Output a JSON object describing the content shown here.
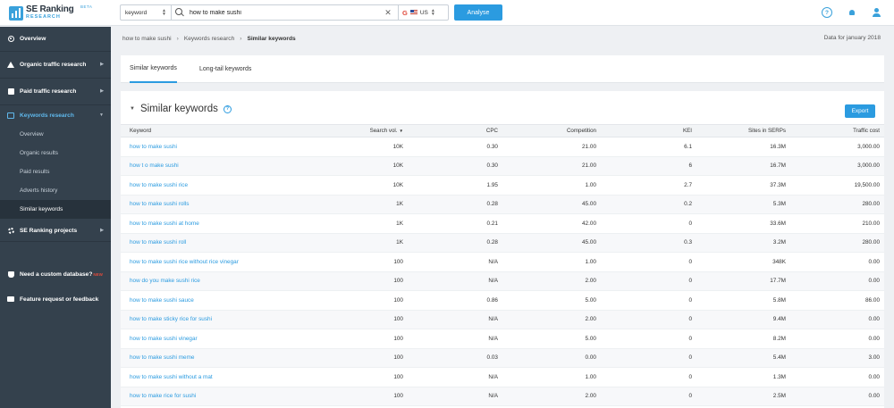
{
  "topbar": {
    "logo_line1": "SE Ranking",
    "logo_line2": "RESEARCH",
    "logo_beta": "BETA",
    "search_type": "keyword",
    "search_value": "how to make sushi",
    "engine_letter": "G",
    "country": "US",
    "analyse_label": "Analyse",
    "help_label": "?"
  },
  "sidebar": {
    "overview": "Overview",
    "organic": "Organic traffic research",
    "paid": "Paid traffic research",
    "keywords": "Keywords research",
    "sub": [
      "Overview",
      "Organic results",
      "Paid results",
      "Adverts history",
      "Similar keywords"
    ],
    "projects": "SE Ranking projects",
    "custom_db": "Need a custom database?",
    "new_tag": "NEW",
    "feature": "Feature request or feedback"
  },
  "breadcrumb": {
    "items": [
      "how to make sushi",
      "Keywords research",
      "Similar keywords"
    ],
    "data_for": "Data for january 2018"
  },
  "tabs": [
    "Similar keywords",
    "Long-tail keywords"
  ],
  "main": {
    "title": "Similar keywords",
    "export_label": "Export",
    "columns": [
      "Keyword",
      "Search vol.",
      "CPC",
      "Competition",
      "KEI",
      "Sites in SERPs",
      "Traffic cost"
    ],
    "rows": [
      [
        "how to make sushi",
        "10K",
        "0.30",
        "21.00",
        "6.1",
        "16.3M",
        "3,000.00"
      ],
      [
        "how t o make sushi",
        "10K",
        "0.30",
        "21.00",
        "6",
        "16.7M",
        "3,000.00"
      ],
      [
        "how to make sushi rice",
        "10K",
        "1.95",
        "1.00",
        "2.7",
        "37.3M",
        "19,500.00"
      ],
      [
        "how to make sushi rolls",
        "1K",
        "0.28",
        "45.00",
        "0.2",
        "5.3M",
        "280.00"
      ],
      [
        "how to make sushi at home",
        "1K",
        "0.21",
        "42.00",
        "0",
        "33.6M",
        "210.00"
      ],
      [
        "how to make sushi roll",
        "1K",
        "0.28",
        "45.00",
        "0.3",
        "3.2M",
        "280.00"
      ],
      [
        "how to make sushi rice without rice vinegar",
        "100",
        "N/A",
        "1.00",
        "0",
        "348K",
        "0.00"
      ],
      [
        "how do you make sushi rice",
        "100",
        "N/A",
        "2.00",
        "0",
        "17.7M",
        "0.00"
      ],
      [
        "how to make sushi sauce",
        "100",
        "0.86",
        "5.00",
        "0",
        "5.8M",
        "86.00"
      ],
      [
        "how to make sticky rice for sushi",
        "100",
        "N/A",
        "2.00",
        "0",
        "9.4M",
        "0.00"
      ],
      [
        "how to make sushi vinegar",
        "100",
        "N/A",
        "5.00",
        "0",
        "8.2M",
        "0.00"
      ],
      [
        "how to make sushi meme",
        "100",
        "0.03",
        "0.00",
        "0",
        "5.4M",
        "3.00"
      ],
      [
        "how to make sushi without a mat",
        "100",
        "N/A",
        "1.00",
        "0",
        "1.3M",
        "0.00"
      ],
      [
        "how to make rice for sushi",
        "100",
        "N/A",
        "2.00",
        "0",
        "2.5M",
        "0.00"
      ]
    ]
  }
}
